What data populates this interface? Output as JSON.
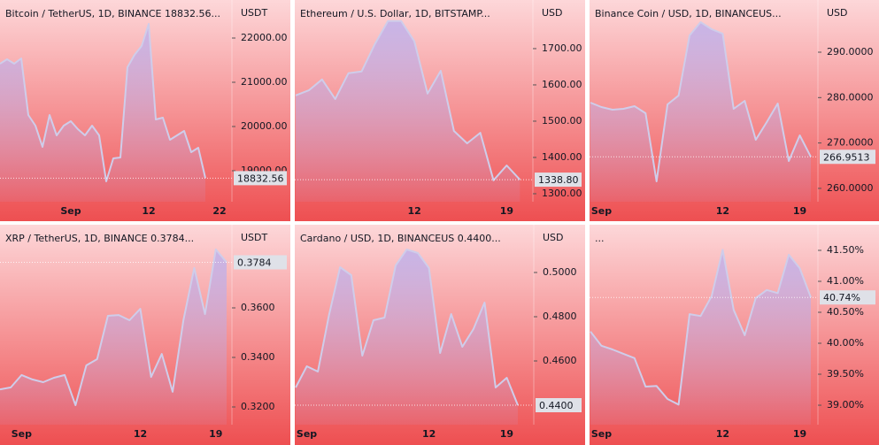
{
  "chart_data": [
    {
      "type": "area",
      "title": "Bitcoin / TetherUS, 1D, BINANCE  18832.56...",
      "unit": "USDT",
      "color": "#cfcdea",
      "categories": [
        null,
        null,
        null,
        null,
        null,
        null,
        null,
        null,
        null,
        null,
        "Sep",
        null,
        null,
        null,
        null,
        null,
        null,
        null,
        null,
        null,
        null,
        "12",
        null,
        null,
        null,
        null,
        null,
        null,
        null,
        null,
        null,
        "22"
      ],
      "values": [
        21420,
        21520,
        21420,
        21540,
        20260,
        20020,
        19540,
        20260,
        19800,
        20020,
        20120,
        19940,
        19800,
        20020,
        19800,
        18760,
        19280,
        19300,
        21340,
        21620,
        21820,
        22320,
        20160,
        20200,
        19700,
        19800,
        19900,
        19420,
        19520,
        18832.56,
        null,
        null
      ],
      "value_labels": [
        null,
        null,
        null,
        null,
        null,
        null,
        null,
        null,
        null,
        null,
        null,
        null,
        null,
        null,
        null,
        null,
        null,
        null,
        null,
        null,
        null,
        null,
        null,
        null,
        null,
        null,
        null,
        null,
        null,
        "18832.56",
        null,
        null
      ],
      "ylim": [
        18300,
        22860
      ],
      "yticks": [
        {
          "value": 19000,
          "label": "19000.00"
        },
        {
          "value": 20000,
          "label": "20000.00"
        },
        {
          "value": 21000,
          "label": "21000.00"
        },
        {
          "value": 22000,
          "label": "22000.00"
        }
      ]
    },
    {
      "type": "area",
      "title": "Ethereum / U.S. Dollar, 1D, BITSTAMP...",
      "unit": "USD",
      "color": "#cfcdea",
      "categories": [
        null,
        null,
        null,
        null,
        null,
        null,
        null,
        null,
        null,
        "12",
        null,
        null,
        null,
        null,
        null,
        null,
        "19",
        null
      ],
      "values": [
        1571,
        1585,
        1615,
        1561,
        1632,
        1637,
        1712,
        1776,
        1776,
        1720,
        1576,
        1639,
        1473,
        1439,
        1468,
        1337,
        1378,
        1338.8
      ],
      "value_labels": [
        null,
        null,
        null,
        null,
        null,
        null,
        null,
        null,
        null,
        null,
        null,
        null,
        null,
        null,
        null,
        null,
        null,
        "1338.80"
      ],
      "ylim": [
        1278,
        1834
      ],
      "yticks": [
        {
          "value": 1300,
          "label": "1300.00"
        },
        {
          "value": 1400,
          "label": "1400.00"
        },
        {
          "value": 1500,
          "label": "1500.00"
        },
        {
          "value": 1600,
          "label": "1600.00"
        },
        {
          "value": 1700,
          "label": "1700.00"
        }
      ]
    },
    {
      "type": "area",
      "title": "Binance Coin / USD, 1D, BINANCEUS...",
      "unit": "USD",
      "color": "#cfcdea",
      "categories": [
        null,
        "Sep",
        null,
        null,
        null,
        null,
        null,
        null,
        null,
        null,
        null,
        null,
        "12",
        null,
        null,
        null,
        null,
        null,
        null,
        "19",
        null
      ],
      "values": [
        278.89,
        277.91,
        277.33,
        277.52,
        278.11,
        276.55,
        261.54,
        278.5,
        280.45,
        293.7,
        296.63,
        295.07,
        294.09,
        277.52,
        279.28,
        270.7,
        274.6,
        278.69,
        266.02,
        271.68,
        266.9513
      ],
      "value_labels": [
        null,
        null,
        null,
        null,
        null,
        null,
        null,
        null,
        null,
        null,
        null,
        null,
        null,
        null,
        null,
        null,
        null,
        null,
        null,
        null,
        "266.9513"
      ],
      "ylim": [
        257.06,
        301.5
      ],
      "yticks": [
        {
          "value": 260,
          "label": "260.0000"
        },
        {
          "value": 270,
          "label": "270.0000"
        },
        {
          "value": 280,
          "label": "280.0000"
        },
        {
          "value": 290,
          "label": "290.0000"
        }
      ]
    },
    {
      "type": "area",
      "title": "XRP / TetherUS, 1D, BINANCE  0.3784...",
      "unit": "USDT",
      "color": "#cfcdea",
      "categories": [
        null,
        null,
        "Sep",
        null,
        null,
        null,
        null,
        null,
        null,
        null,
        null,
        null,
        null,
        "12",
        null,
        null,
        null,
        null,
        null,
        null,
        "19",
        null
      ],
      "values": [
        0.3271,
        0.3279,
        0.3329,
        0.3311,
        0.33,
        0.3318,
        0.3329,
        0.3207,
        0.3368,
        0.3393,
        0.3568,
        0.3571,
        0.355,
        0.3596,
        0.3321,
        0.3414,
        0.3261,
        0.355,
        0.3761,
        0.3575,
        0.3836,
        0.3784
      ],
      "value_labels": [
        null,
        null,
        null,
        null,
        null,
        null,
        null,
        null,
        null,
        null,
        null,
        null,
        null,
        null,
        null,
        null,
        null,
        null,
        null,
        null,
        null,
        "0.3784"
      ],
      "ylim": [
        0.31286,
        0.39357
      ],
      "yticks": [
        {
          "value": 0.32,
          "label": "0.3200"
        },
        {
          "value": 0.34,
          "label": "0.3400"
        },
        {
          "value": 0.36,
          "label": "0.3600"
        }
      ]
    },
    {
      "type": "area",
      "title": "Cardano / USD, 1D, BINANCEUS  0.4400...",
      "unit": "USD",
      "color": "#cfcdea",
      "categories": [
        null,
        "Sep",
        null,
        null,
        null,
        null,
        null,
        null,
        null,
        null,
        null,
        null,
        "12",
        null,
        null,
        null,
        null,
        null,
        null,
        "19",
        null
      ],
      "values": [
        0.448,
        0.4576,
        0.4552,
        0.4808,
        0.5024,
        0.4988,
        0.4624,
        0.4784,
        0.4796,
        0.5032,
        0.5104,
        0.5088,
        0.502,
        0.4636,
        0.4812,
        0.4664,
        0.4744,
        0.4864,
        0.448,
        0.4524,
        0.44
      ],
      "value_labels": [
        null,
        null,
        null,
        null,
        null,
        null,
        null,
        null,
        null,
        null,
        null,
        null,
        null,
        null,
        null,
        null,
        null,
        null,
        null,
        null,
        "0.4400"
      ],
      "ylim": [
        0.4312,
        0.5216
      ],
      "yticks": [
        {
          "value": 0.46,
          "label": "0.4600"
        },
        {
          "value": 0.48,
          "label": "0.4800"
        },
        {
          "value": 0.5,
          "label": "0.5000"
        }
      ]
    },
    {
      "type": "area",
      "title": "...",
      "color": "#cfcdea",
      "categories": [
        null,
        "Sep",
        null,
        null,
        null,
        null,
        null,
        null,
        null,
        null,
        null,
        null,
        "12",
        null,
        null,
        null,
        null,
        null,
        null,
        "19",
        null
      ],
      "values": [
        40.19,
        39.96,
        39.9,
        39.83,
        39.76,
        39.3,
        39.31,
        39.1,
        39.01,
        40.47,
        40.44,
        40.76,
        41.51,
        40.54,
        40.13,
        40.73,
        40.86,
        40.81,
        41.43,
        41.21,
        40.74
      ],
      "value_labels": [
        null,
        null,
        null,
        null,
        null,
        null,
        null,
        null,
        null,
        null,
        null,
        null,
        null,
        null,
        null,
        null,
        null,
        null,
        null,
        null,
        "40.74%"
      ],
      "ylim": [
        38.686,
        41.914
      ],
      "yticks": [
        {
          "value": 39,
          "label": "39.00%"
        },
        {
          "value": 39.5,
          "label": "39.50%"
        },
        {
          "value": 40,
          "label": "40.00%"
        },
        {
          "value": 40.5,
          "label": "40.50%"
        },
        {
          "value": 41,
          "label": "41.00%"
        },
        {
          "value": 41.5,
          "label": "41.50%"
        }
      ]
    }
  ]
}
